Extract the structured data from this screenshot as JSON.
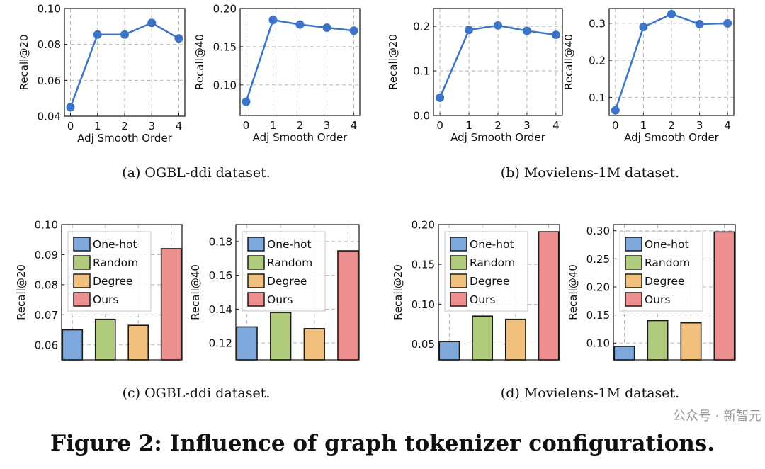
{
  "figure_title": "Figure 2: Influence of graph tokenizer configurations.",
  "watermark": "公众号 · 新智元",
  "captions": {
    "a": "(a)  OGBL-ddi dataset.",
    "b": "(b)  Movielens-1M dataset.",
    "c": "(c)  OGBL-ddi dataset.",
    "d": "(d)  Movielens-1M dataset."
  },
  "colors": {
    "line": "#3b74c8",
    "one_hot": "#7ea7dc",
    "random": "#b1cb7d",
    "degree": "#f0c07c",
    "ours": "#ee9090"
  },
  "chart_data": [
    {
      "type": "line",
      "panel": "a",
      "xlabel": "Adj Smooth Order",
      "ylabel": "Recall@20",
      "x": [
        0,
        1,
        2,
        3,
        4
      ],
      "values": [
        0.045,
        0.0855,
        0.0855,
        0.092,
        0.0833
      ],
      "ylim": [
        0.04,
        0.1
      ],
      "yticks": [
        0.04,
        0.06,
        0.08,
        0.1
      ],
      "ytick_labels": [
        "0.04",
        "0.06",
        "0.08",
        "0.10"
      ],
      "grid": true
    },
    {
      "type": "line",
      "panel": "a",
      "xlabel": "Adj Smooth Order",
      "ylabel": "Recall@40",
      "x": [
        0,
        1,
        2,
        3,
        4
      ],
      "values": [
        0.078,
        0.185,
        0.179,
        0.175,
        0.171
      ],
      "ylim": [
        0.06,
        0.2
      ],
      "yticks": [
        0.1,
        0.15,
        0.2
      ],
      "ytick_labels": [
        "0.10",
        "0.15",
        "0.20"
      ],
      "grid": true
    },
    {
      "type": "line",
      "panel": "b",
      "xlabel": "Adj Smooth Order",
      "ylabel": "Recall@20",
      "x": [
        0,
        1,
        2,
        3,
        4
      ],
      "values": [
        0.04,
        0.192,
        0.202,
        0.19,
        0.181
      ],
      "ylim": [
        0.0,
        0.24
      ],
      "yticks": [
        0.0,
        0.1,
        0.2
      ],
      "ytick_labels": [
        "0.0",
        "0.1",
        "0.2"
      ],
      "grid": true
    },
    {
      "type": "line",
      "panel": "b",
      "xlabel": "Adj Smooth Order",
      "ylabel": "Recall@40",
      "x": [
        0,
        1,
        2,
        3,
        4
      ],
      "values": [
        0.065,
        0.29,
        0.325,
        0.298,
        0.3
      ],
      "ylim": [
        0.051,
        0.34
      ],
      "yticks": [
        0.1,
        0.2,
        0.3
      ],
      "ytick_labels": [
        "0.1",
        "0.2",
        "0.3"
      ],
      "grid": true
    },
    {
      "type": "bar",
      "panel": "c",
      "ylabel": "Recall@20",
      "categories": [
        "One-hot",
        "Random",
        "Degree",
        "Ours"
      ],
      "values": [
        0.065,
        0.0685,
        0.0665,
        0.092
      ],
      "ylim": [
        0.055,
        0.1
      ],
      "yticks": [
        0.06,
        0.07,
        0.08,
        0.09,
        0.1
      ],
      "ytick_labels": [
        "0.06",
        "0.07",
        "0.08",
        "0.09",
        "0.10"
      ],
      "legend": "top-left",
      "grid": true
    },
    {
      "type": "bar",
      "panel": "c",
      "ylabel": "Recall@40",
      "categories": [
        "One-hot",
        "Random",
        "Degree",
        "Ours"
      ],
      "values": [
        0.1295,
        0.138,
        0.1285,
        0.1745
      ],
      "ylim": [
        0.11,
        0.19
      ],
      "yticks": [
        0.12,
        0.14,
        0.16,
        0.18
      ],
      "ytick_labels": [
        "0.12",
        "0.14",
        "0.16",
        "0.18"
      ],
      "legend": "top-left",
      "grid": true
    },
    {
      "type": "bar",
      "panel": "d",
      "ylabel": "Recall@20",
      "categories": [
        "One-hot",
        "Random",
        "Degree",
        "Ours"
      ],
      "values": [
        0.053,
        0.085,
        0.081,
        0.191
      ],
      "ylim": [
        0.03,
        0.2
      ],
      "yticks": [
        0.05,
        0.1,
        0.15,
        0.2
      ],
      "ytick_labels": [
        "0.05",
        "0.10",
        "0.15",
        "0.20"
      ],
      "legend": "top-left",
      "grid": true
    },
    {
      "type": "bar",
      "panel": "d",
      "ylabel": "Recall@40",
      "categories": [
        "One-hot",
        "Random",
        "Degree",
        "Ours"
      ],
      "values": [
        0.094,
        0.14,
        0.136,
        0.298
      ],
      "ylim": [
        0.07,
        0.311
      ],
      "yticks": [
        0.1,
        0.15,
        0.2,
        0.25,
        0.3
      ],
      "ytick_labels": [
        "0.10",
        "0.15",
        "0.20",
        "0.25",
        "0.30"
      ],
      "legend": "top-left",
      "grid": true
    }
  ]
}
